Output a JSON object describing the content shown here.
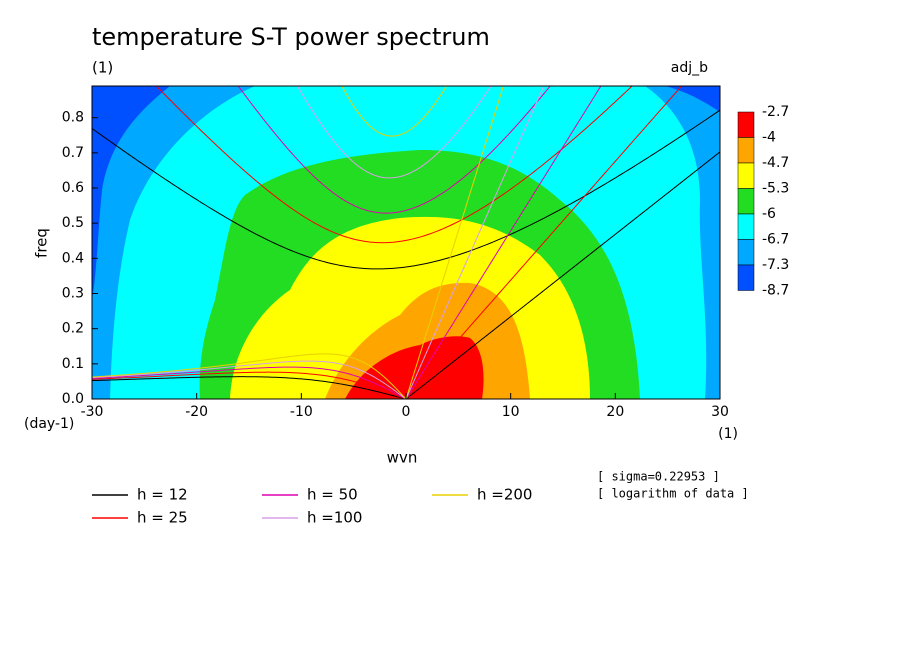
{
  "chart_data": {
    "type": "spectrum",
    "title": "temperature S-T power spectrum",
    "subtitle": "(1)",
    "tag": "adj_b",
    "xlabel": "wvn",
    "xunit": "(1)",
    "ylabel": "freq",
    "yunit": "(day-1)",
    "xlim": [
      -30,
      30
    ],
    "ylim": [
      0,
      0.89
    ],
    "xticks": [
      -30,
      -20,
      -10,
      0,
      10,
      20,
      30
    ],
    "yticks": [
      {
        "value": 0,
        "label": "0.0"
      },
      0.1,
      0.2,
      0.3,
      0.4,
      0.5,
      0.6,
      0.7,
      0.8
    ],
    "colorbar": {
      "levels": [
        -2.7,
        -4,
        -4.7,
        -5.3,
        -6,
        -6.7,
        -7.3,
        -8.7
      ],
      "colors": [
        "#ff0000",
        "#ffa500",
        "#ffff00",
        "#22dd22",
        "#00ffff",
        "#00a8ff",
        "#0050ff"
      ]
    },
    "series": [
      {
        "name": "h = 12",
        "h": 12,
        "color": "#000000"
      },
      {
        "name": "h = 25",
        "h": 25,
        "color": "#ff0000"
      },
      {
        "name": "h = 50",
        "h": 50,
        "color": "#e000b0"
      },
      {
        "name": "h =100",
        "h": 100,
        "color": "#d8a0e8"
      },
      {
        "name": "h =200",
        "h": 200,
        "color": "#e8d000"
      }
    ],
    "notes": [
      "[ sigma=0.22953 ]",
      "[ logarithm of data ]"
    ]
  }
}
